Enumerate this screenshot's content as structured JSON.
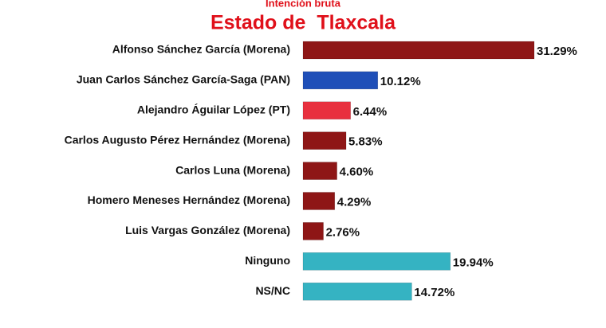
{
  "chart_data": {
    "type": "bar",
    "orientation": "horizontal",
    "subtitle": "Intención bruta",
    "title": "Estado de  Tlaxcala",
    "categories": [
      "Alfonso Sánchez García (Morena)",
      "Juan Carlos Sánchez García-Saga (PAN)",
      "Alejandro Águilar López (PT)",
      "Carlos Augusto Pérez Hernández (Morena)",
      "Carlos Luna (Morena)",
      "Homero Meneses Hernández (Morena)",
      "Luis Vargas González (Morena)",
      "Ninguno",
      "NS/NC"
    ],
    "values": [
      31.29,
      10.12,
      6.44,
      5.83,
      4.6,
      4.29,
      2.76,
      19.94,
      14.72
    ],
    "value_labels": [
      "31.29%",
      "10.12%",
      "6.44%",
      "5.83%",
      "4.60%",
      "4.29%",
      "2.76%",
      "19.94%",
      "14.72%"
    ],
    "colors": [
      "#8e1616",
      "#1f4fb8",
      "#e8303e",
      "#8e1616",
      "#8e1616",
      "#8e1616",
      "#8e1616",
      "#35b3c2",
      "#35b3c2"
    ]
  }
}
